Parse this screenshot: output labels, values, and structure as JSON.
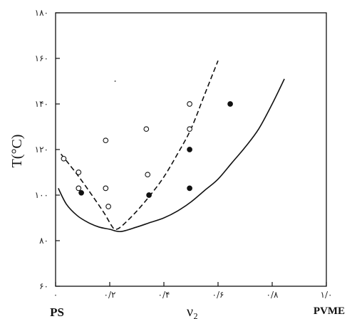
{
  "chart_data": {
    "type": "scatter",
    "title": "",
    "ylabel": "T(°C)",
    "xlabel": "ν₂",
    "xlim": [
      0,
      1.0
    ],
    "ylim": [
      60,
      180
    ],
    "x_ticks": [
      {
        "value": 0,
        "label": "۰"
      },
      {
        "value": 0.2,
        "label": "۰/۲"
      },
      {
        "value": 0.4,
        "label": "۰/۴"
      },
      {
        "value": 0.6,
        "label": "۰/۶"
      },
      {
        "value": 0.8,
        "label": "۰/۸"
      },
      {
        "value": 1.0,
        "label": "۱/۰"
      }
    ],
    "y_ticks": [
      {
        "value": 60,
        "label": "۶۰"
      },
      {
        "value": 80,
        "label": "۸۰"
      },
      {
        "value": 100,
        "label": "۱۰۰"
      },
      {
        "value": 120,
        "label": "۱۲۰"
      },
      {
        "value": 140,
        "label": "۱۴۰"
      },
      {
        "value": 160,
        "label": "۱۶۰"
      },
      {
        "value": 180,
        "label": "۱۸۰"
      }
    ],
    "x_end_labels": {
      "left": "PS",
      "right": "PVME"
    },
    "series": [
      {
        "marker": "open-circle",
        "points": [
          {
            "x": 0.03,
            "y": 116
          },
          {
            "x": 0.085,
            "y": 110
          },
          {
            "x": 0.085,
            "y": 103
          },
          {
            "x": 0.185,
            "y": 124
          },
          {
            "x": 0.185,
            "y": 103
          },
          {
            "x": 0.195,
            "y": 95
          },
          {
            "x": 0.335,
            "y": 129
          },
          {
            "x": 0.34,
            "y": 109
          },
          {
            "x": 0.495,
            "y": 140
          },
          {
            "x": 0.495,
            "y": 129
          }
        ]
      },
      {
        "marker": "filled-circle",
        "points": [
          {
            "x": 0.095,
            "y": 101
          },
          {
            "x": 0.345,
            "y": 100
          },
          {
            "x": 0.495,
            "y": 120
          },
          {
            "x": 0.495,
            "y": 103
          },
          {
            "x": 0.645,
            "y": 140
          }
        ]
      },
      {
        "marker": "dashed-line",
        "points": [
          {
            "x": 0.02,
            "y": 118
          },
          {
            "x": 0.08,
            "y": 109
          },
          {
            "x": 0.14,
            "y": 99
          },
          {
            "x": 0.18,
            "y": 92
          },
          {
            "x": 0.21,
            "y": 86
          },
          {
            "x": 0.225,
            "y": 85
          },
          {
            "x": 0.25,
            "y": 87
          },
          {
            "x": 0.3,
            "y": 93
          },
          {
            "x": 0.35,
            "y": 100
          },
          {
            "x": 0.4,
            "y": 108
          },
          {
            "x": 0.45,
            "y": 118
          },
          {
            "x": 0.5,
            "y": 129
          },
          {
            "x": 0.55,
            "y": 144
          },
          {
            "x": 0.6,
            "y": 159
          }
        ]
      },
      {
        "marker": "solid-line",
        "points": [
          {
            "x": 0.01,
            "y": 103
          },
          {
            "x": 0.04,
            "y": 96
          },
          {
            "x": 0.08,
            "y": 91
          },
          {
            "x": 0.12,
            "y": 88
          },
          {
            "x": 0.16,
            "y": 86
          },
          {
            "x": 0.2,
            "y": 85
          },
          {
            "x": 0.24,
            "y": 84
          },
          {
            "x": 0.3,
            "y": 86
          },
          {
            "x": 0.35,
            "y": 88
          },
          {
            "x": 0.4,
            "y": 90
          },
          {
            "x": 0.45,
            "y": 93
          },
          {
            "x": 0.5,
            "y": 97
          },
          {
            "x": 0.55,
            "y": 102
          },
          {
            "x": 0.6,
            "y": 107
          },
          {
            "x": 0.65,
            "y": 114
          },
          {
            "x": 0.7,
            "y": 121
          },
          {
            "x": 0.75,
            "y": 129
          },
          {
            "x": 0.8,
            "y": 140
          },
          {
            "x": 0.845,
            "y": 151
          }
        ]
      }
    ],
    "stray_dot": {
      "x": 0.22,
      "y": 150
    }
  }
}
